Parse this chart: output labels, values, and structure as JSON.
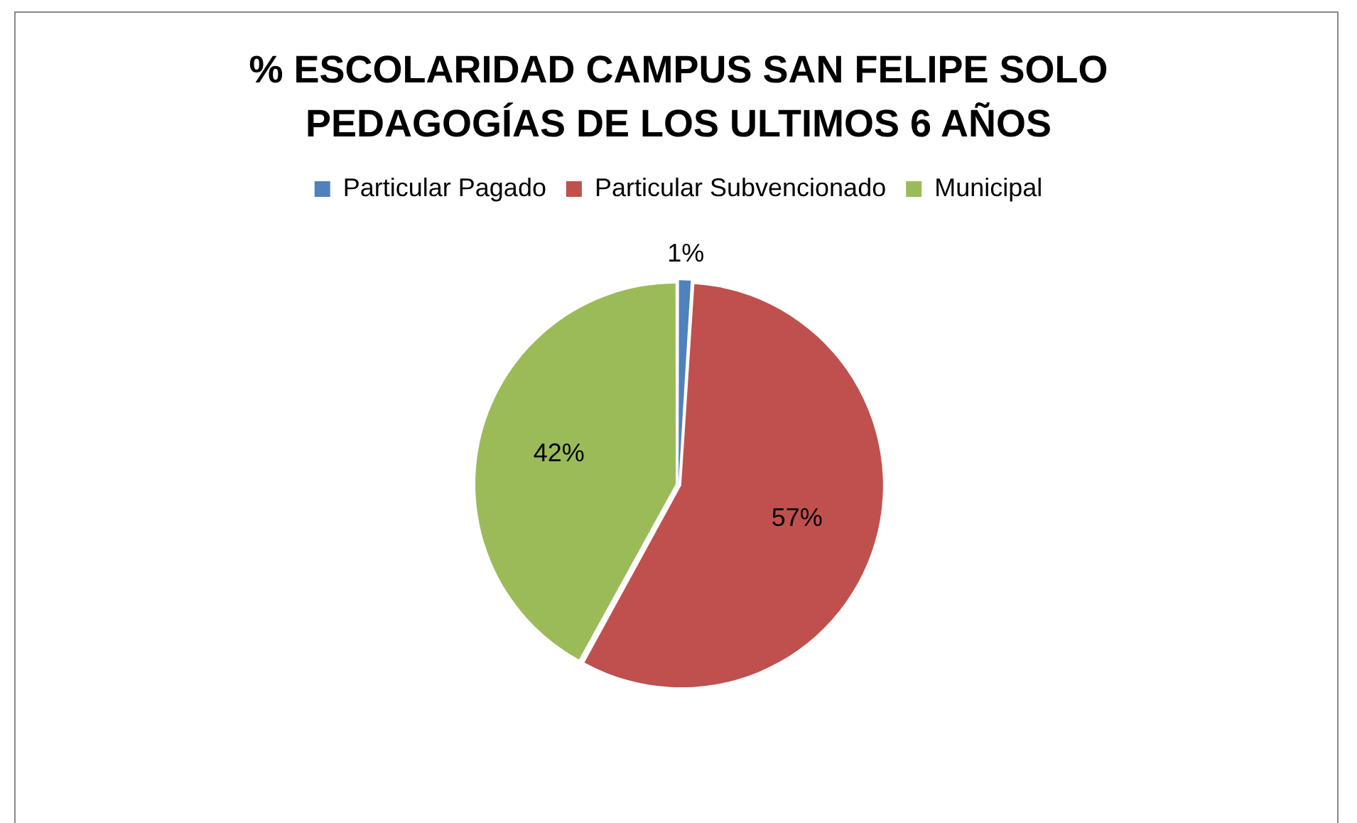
{
  "chart_data": {
    "type": "pie",
    "title": "% ESCOLARIDAD CAMPUS SAN FELIPE SOLO PEDAGOGÍAS DE LOS ULTIMOS 6 AÑOS",
    "categories": [
      "Particular Pagado",
      "Particular Subvencionado",
      "Municipal"
    ],
    "values": [
      1,
      57,
      42
    ],
    "colors": [
      "#4f81bd",
      "#c0504d",
      "#9bbb59"
    ],
    "value_labels": [
      "1%",
      "57%",
      "42%"
    ],
    "legend": "top"
  }
}
